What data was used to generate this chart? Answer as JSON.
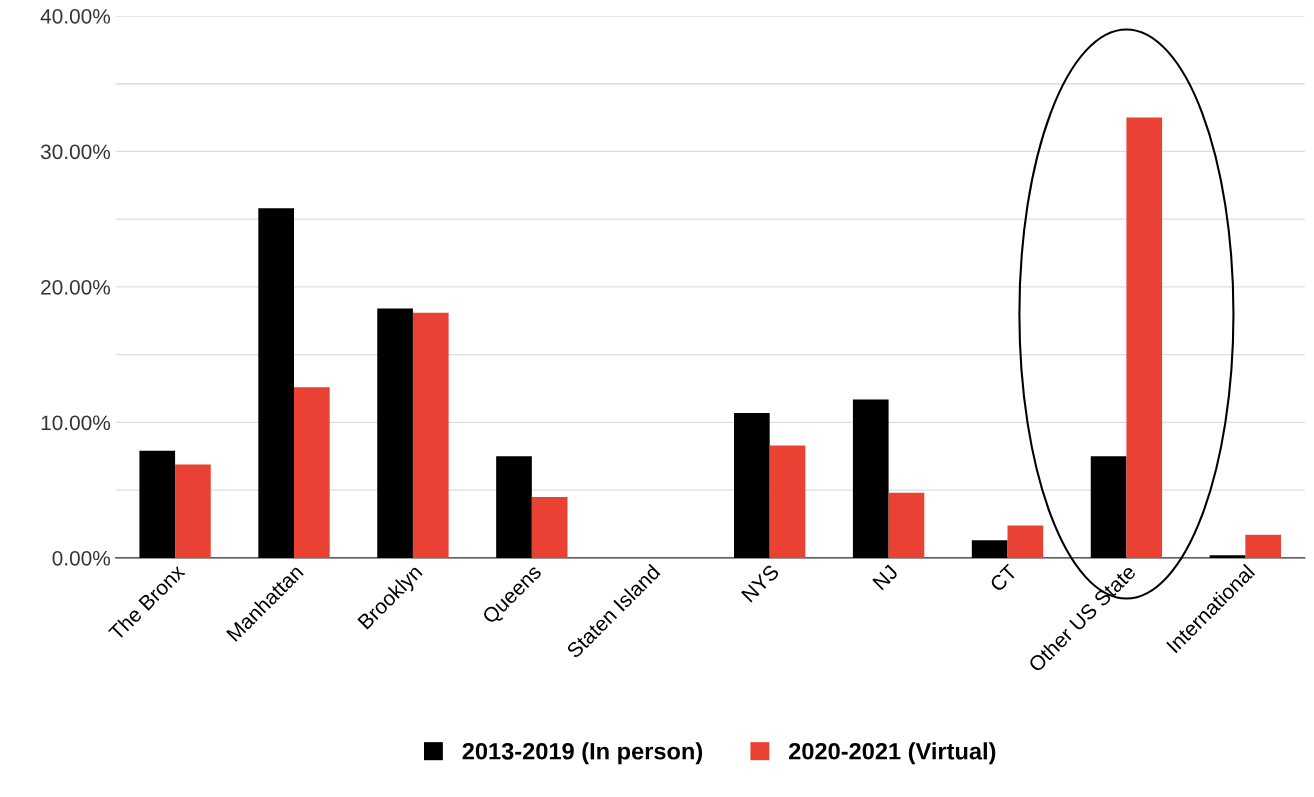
{
  "chart_data": {
    "type": "bar",
    "categories": [
      "The Bronx",
      "Manhattan",
      "Brooklyn",
      "Queens",
      "Staten Island",
      "NYS",
      "NJ",
      "CT",
      "Other US State",
      "International"
    ],
    "series": [
      {
        "name": "2013-2019 (In person)",
        "color": "#000000",
        "values": [
          7.9,
          25.8,
          18.4,
          7.5,
          0,
          10.7,
          11.7,
          1.3,
          7.5,
          0.2
        ]
      },
      {
        "name": "2020-2021 (Virtual)",
        "color": "#e94235",
        "values": [
          6.9,
          12.6,
          18.1,
          4.5,
          0,
          8.3,
          4.8,
          2.4,
          32.5,
          1.7
        ]
      }
    ],
    "ylim": [
      0,
      40
    ],
    "yticks": [
      {
        "value": 0,
        "label": "0.00%"
      },
      {
        "value": 5,
        "label": null
      },
      {
        "value": 10,
        "label": "10.00%"
      },
      {
        "value": 15,
        "label": null
      },
      {
        "value": 20,
        "label": "20.00%"
      },
      {
        "value": 25,
        "label": null
      },
      {
        "value": 30,
        "label": "30.00%"
      },
      {
        "value": 35,
        "label": null
      },
      {
        "value": 40,
        "label": "40.00%"
      }
    ],
    "grid": "y",
    "legend": "bottom"
  }
}
